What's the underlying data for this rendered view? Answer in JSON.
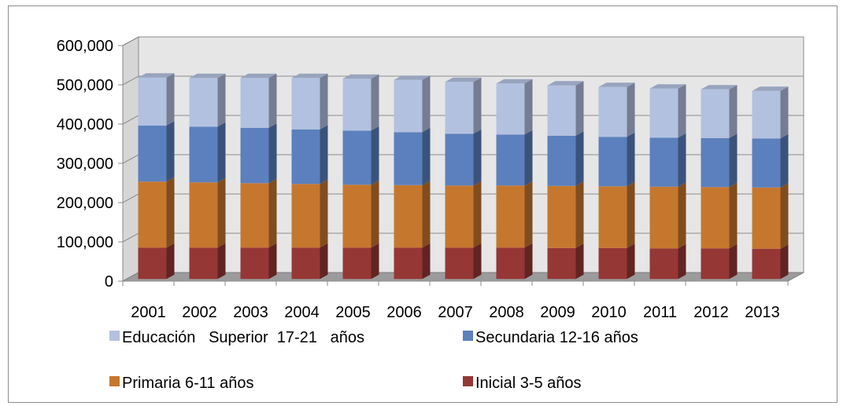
{
  "chart_data": {
    "type": "bar",
    "stacked": true,
    "style": "3d-column",
    "categories": [
      "2001",
      "2002",
      "2003",
      "2004",
      "2005",
      "2006",
      "2007",
      "2008",
      "2009",
      "2010",
      "2011",
      "2012",
      "2013"
    ],
    "series": [
      {
        "name": "Inicial 3-5 años",
        "color": "#953735",
        "values": [
          80000,
          80000,
          80000,
          80000,
          80000,
          80000,
          80000,
          80000,
          79000,
          79000,
          78000,
          78000,
          77000
        ]
      },
      {
        "name": "Primaria 6-11 años",
        "color": "#c6772e",
        "values": [
          168000,
          166000,
          164000,
          162000,
          160000,
          159000,
          158000,
          158000,
          158000,
          157000,
          157000,
          156000,
          156000
        ]
      },
      {
        "name": "Secundaria 12-16 años",
        "color": "#5b80bd",
        "values": [
          143000,
          142000,
          141000,
          139000,
          138000,
          135000,
          132000,
          130000,
          128000,
          126000,
          125000,
          125000,
          125000
        ]
      },
      {
        "name": "Educación   Superior  17-21   años",
        "color": "#b3c1e0",
        "values": [
          122000,
          124000,
          127000,
          131000,
          132000,
          133000,
          132000,
          130000,
          128000,
          127000,
          125000,
          124000,
          121000
        ]
      }
    ],
    "y_ticks": [
      "0",
      "100,000",
      "200,000",
      "300,000",
      "400,000",
      "500,000",
      "600,000"
    ],
    "ylim": [
      0,
      600000
    ],
    "grid": true,
    "legend_position": "bottom",
    "title": "",
    "xlabel": "",
    "ylabel": ""
  }
}
